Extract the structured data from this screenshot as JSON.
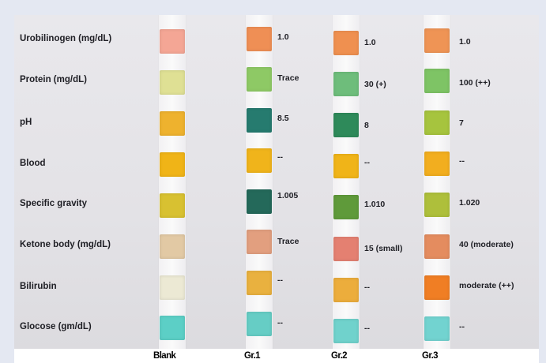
{
  "rows": [
    {
      "label": "Urobilinogen (mg/dL)"
    },
    {
      "label": "Protein (mg/dL)"
    },
    {
      "label": "pH"
    },
    {
      "label": "Blood"
    },
    {
      "label": "Specific gravity"
    },
    {
      "label": "Ketone body (mg/dL)"
    },
    {
      "label": "Bilirubin"
    },
    {
      "label": "Glocose (gm/dL)"
    }
  ],
  "columns": [
    {
      "label": "Blank",
      "colors": [
        "#f4a695",
        "#dfe094",
        "#eeb22e",
        "#f0b417",
        "#d8c131",
        "#e2c9a4",
        "#ece9d4",
        "#5ccfc6"
      ],
      "values": [
        "",
        "",
        "",
        "",
        "",
        "",
        "",
        ""
      ]
    },
    {
      "label": "Gr.1",
      "colors": [
        "#ef8f55",
        "#8ec965",
        "#267b6f",
        "#f0b41b",
        "#24695a",
        "#e29f7f",
        "#e9b13f",
        "#66cdc5"
      ],
      "values": [
        "1.0",
        "Trace",
        "8.5",
        "--",
        "1.005",
        "Trace",
        "--",
        "--"
      ]
    },
    {
      "label": "Gr.2",
      "colors": [
        "#ef9050",
        "#6ebd7b",
        "#2e8a5a",
        "#f0b418",
        "#5f9a3a",
        "#e48071",
        "#ecad3c",
        "#70d2cc"
      ],
      "values": [
        "1.0",
        "30 (+)",
        "8",
        "--",
        "1.010",
        "15 (small)",
        "--",
        "--"
      ]
    },
    {
      "label": "Gr.3",
      "colors": [
        "#ef9455",
        "#7ec465",
        "#a6c43e",
        "#f2ae1f",
        "#aebf3b",
        "#e48c5f",
        "#f07e24",
        "#72d3d0"
      ],
      "values": [
        "1.0",
        "100 (++)",
        "7",
        "--",
        "1.020",
        "40 (moderate)",
        "moderate (++)",
        "--"
      ]
    }
  ]
}
